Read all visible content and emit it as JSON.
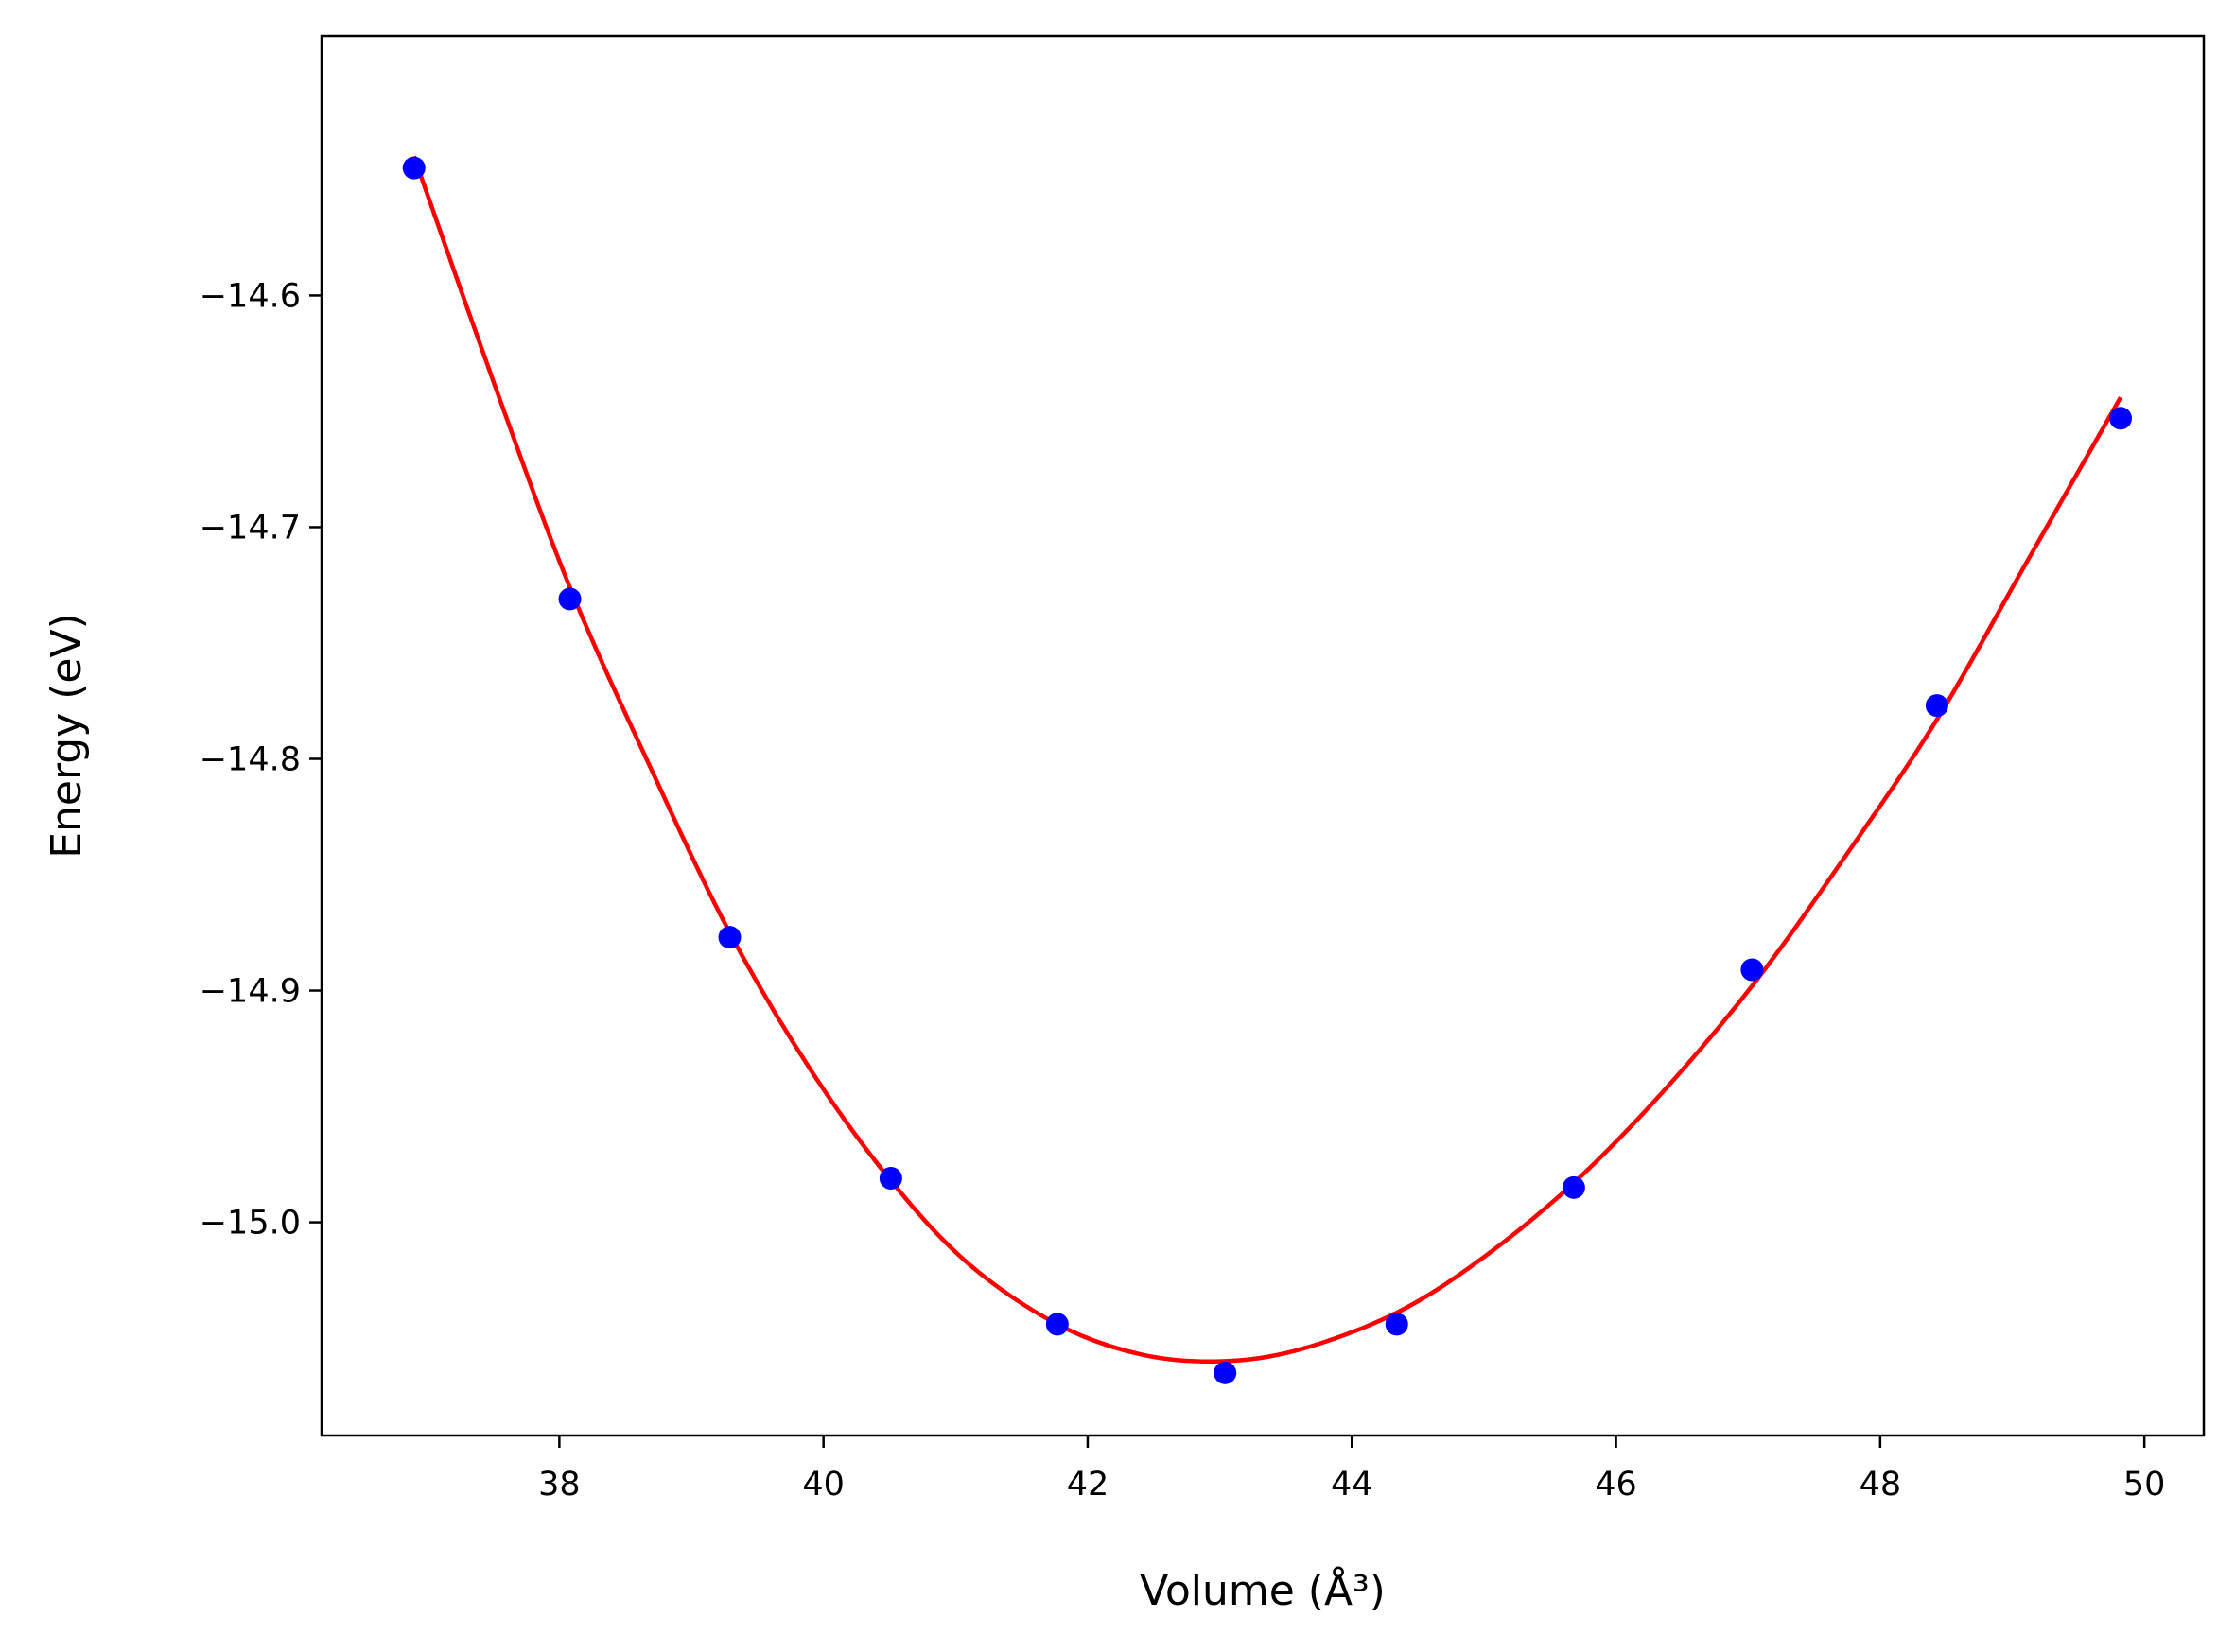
{
  "chart_data": {
    "type": "scatter",
    "xlabel": "Volume (Å³)",
    "ylabel": "Energy (eV)",
    "xlim": [
      36.2,
      50.45
    ],
    "ylim": [
      -15.092,
      -14.488
    ],
    "x_ticks": [
      38,
      40,
      42,
      44,
      46,
      48,
      50
    ],
    "y_ticks": [
      -14.6,
      -14.7,
      -14.8,
      -14.9,
      -15.0
    ],
    "x_tick_labels": [
      "38",
      "40",
      "42",
      "44",
      "46",
      "48",
      "50"
    ],
    "y_tick_labels": [
      "−14.6",
      "−14.7",
      "−14.8",
      "−14.9",
      "−15.0"
    ],
    "grid": false,
    "legend": "none",
    "series": [
      {
        "kind": "points",
        "color": "#0000ff",
        "x": [
          36.9,
          38.08,
          39.29,
          40.51,
          41.77,
          43.04,
          44.34,
          45.68,
          47.03,
          48.43,
          49.82
        ],
        "y": [
          -14.545,
          -14.731,
          -14.877,
          -14.981,
          -15.044,
          -15.065,
          -15.044,
          -14.985,
          -14.891,
          -14.777,
          -14.653
        ]
      },
      {
        "kind": "fit-curve",
        "color": "#ff0000",
        "x": [
          36.9,
          37.5,
          38.08,
          38.7,
          39.29,
          39.9,
          40.51,
          41.1,
          41.77,
          42.4,
          43.0,
          43.6,
          44.34,
          45.0,
          45.68,
          46.35,
          47.03,
          47.7,
          48.43,
          49.1,
          49.82
        ],
        "y": [
          -14.54,
          -14.637,
          -14.726,
          -14.805,
          -14.875,
          -14.934,
          -14.982,
          -15.018,
          -15.044,
          -15.057,
          -15.06,
          -15.055,
          -15.039,
          -15.015,
          -14.983,
          -14.944,
          -14.898,
          -14.845,
          -14.783,
          -14.716,
          -14.644
        ]
      }
    ]
  }
}
